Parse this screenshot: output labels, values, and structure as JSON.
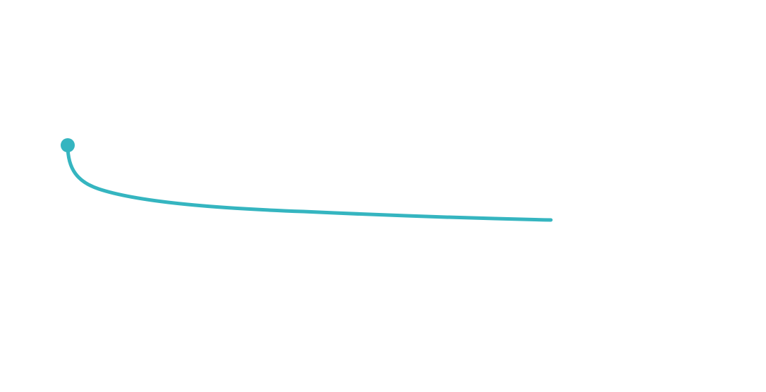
{
  "connector": {
    "color": "#35b5c0",
    "start_marker": "dot",
    "end_marker": "none"
  }
}
